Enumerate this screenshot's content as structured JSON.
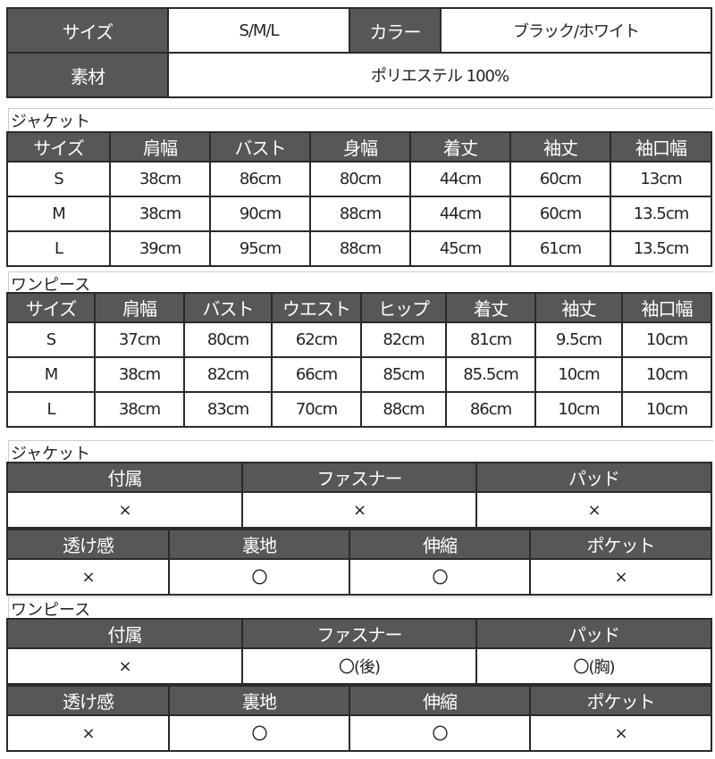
{
  "summary": {
    "rows": [
      [
        "サイズ",
        "S/M/L",
        "カラー",
        "ブラック/ホワイト"
      ],
      [
        "素材",
        "ポリエステル 100%"
      ]
    ]
  },
  "jacket_size": {
    "label": "ジャケット",
    "headers": [
      "サイズ",
      "肩幅",
      "バスト",
      "身幅",
      "着丈",
      "袖丈",
      "袖口幅"
    ],
    "rows": [
      [
        "S",
        "38cm",
        "86cm",
        "80cm",
        "44cm",
        "60cm",
        "13cm"
      ],
      [
        "M",
        "38cm",
        "90cm",
        "88cm",
        "44cm",
        "60cm",
        "13.5cm"
      ],
      [
        "L",
        "39cm",
        "95cm",
        "88cm",
        "45cm",
        "61cm",
        "13.5cm"
      ]
    ]
  },
  "dress_size": {
    "label": "ワンピース",
    "headers": [
      "サイズ",
      "肩幅",
      "バスト",
      "ウエスト",
      "ヒップ",
      "着丈",
      "袖丈",
      "袖口幅"
    ],
    "rows": [
      [
        "S",
        "37cm",
        "80cm",
        "62cm",
        "82cm",
        "81cm",
        "9.5cm",
        "10cm"
      ],
      [
        "M",
        "38cm",
        "82cm",
        "66cm",
        "85cm",
        "85.5cm",
        "10cm",
        "10cm"
      ],
      [
        "L",
        "38cm",
        "83cm",
        "70cm",
        "88cm",
        "86cm",
        "10cm",
        "10cm"
      ]
    ]
  },
  "jacket_spec": {
    "label": "ジャケット",
    "a_headers": [
      "付属",
      "ファスナー",
      "パッド"
    ],
    "a_values": [
      "×",
      "×",
      "×"
    ],
    "b_headers": [
      "透け感",
      "裏地",
      "伸縮",
      "ポケット"
    ],
    "b_values": [
      "×",
      "〇",
      "〇",
      "×"
    ]
  },
  "dress_spec": {
    "label": "ワンピース",
    "a_headers": [
      "付属",
      "ファスナー",
      "パッド"
    ],
    "a_values": [
      "×",
      "〇(後)",
      "〇(胸)"
    ],
    "b_headers": [
      "透け感",
      "裏地",
      "伸縮",
      "ポケット"
    ],
    "b_values": [
      "×",
      "〇",
      "〇",
      "×"
    ]
  },
  "colors": {
    "header_bg": "#575757",
    "border": "#2a2a2a"
  }
}
